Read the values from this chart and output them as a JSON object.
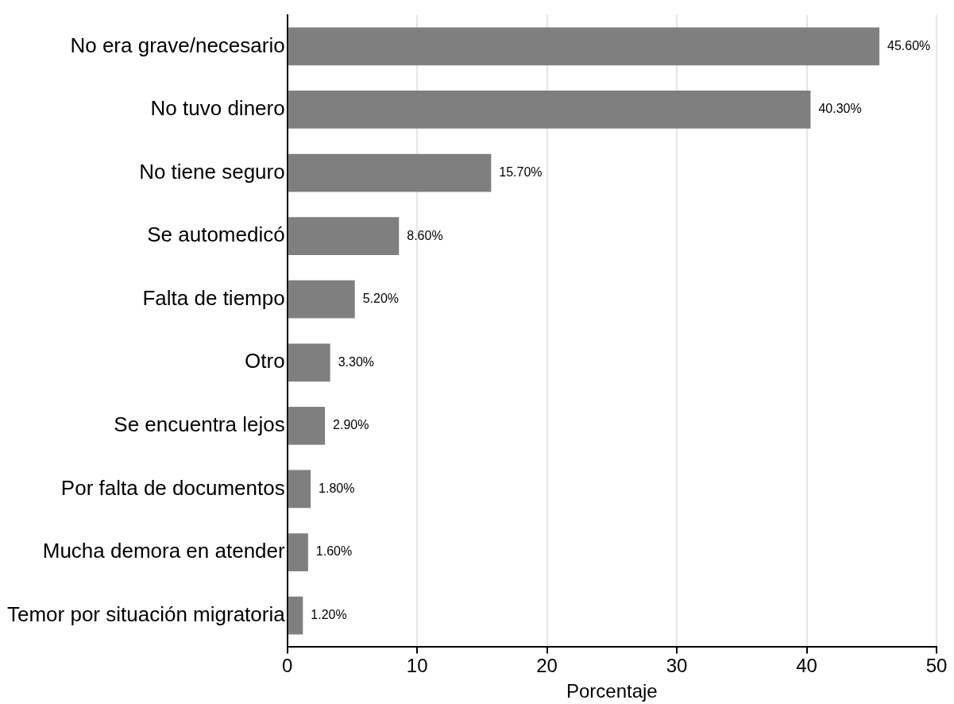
{
  "chart_data": {
    "type": "bar",
    "orientation": "horizontal",
    "xlabel": "Porcentaje",
    "categories": [
      "No era grave/necesario",
      "No tuvo dinero",
      "No tiene seguro",
      "Se automedicó",
      "Falta de tiempo",
      "Otro",
      "Se encuentra lejos",
      "Por falta de documentos",
      "Mucha demora en atender",
      "Temor por situación migratoria"
    ],
    "values": [
      45.6,
      40.3,
      15.7,
      8.6,
      5.2,
      3.3,
      2.9,
      1.8,
      1.6,
      1.2
    ],
    "value_labels": [
      "45.60%",
      "40.30%",
      "15.70%",
      "8.60%",
      "5.20%",
      "3.30%",
      "2.90%",
      "1.80%",
      "1.60%",
      "1.20%"
    ],
    "color": "#7f7f7f",
    "xlim": [
      0,
      50
    ],
    "xticks": [
      0,
      10,
      20,
      30,
      40,
      50
    ],
    "grid": "x",
    "legend": false
  }
}
